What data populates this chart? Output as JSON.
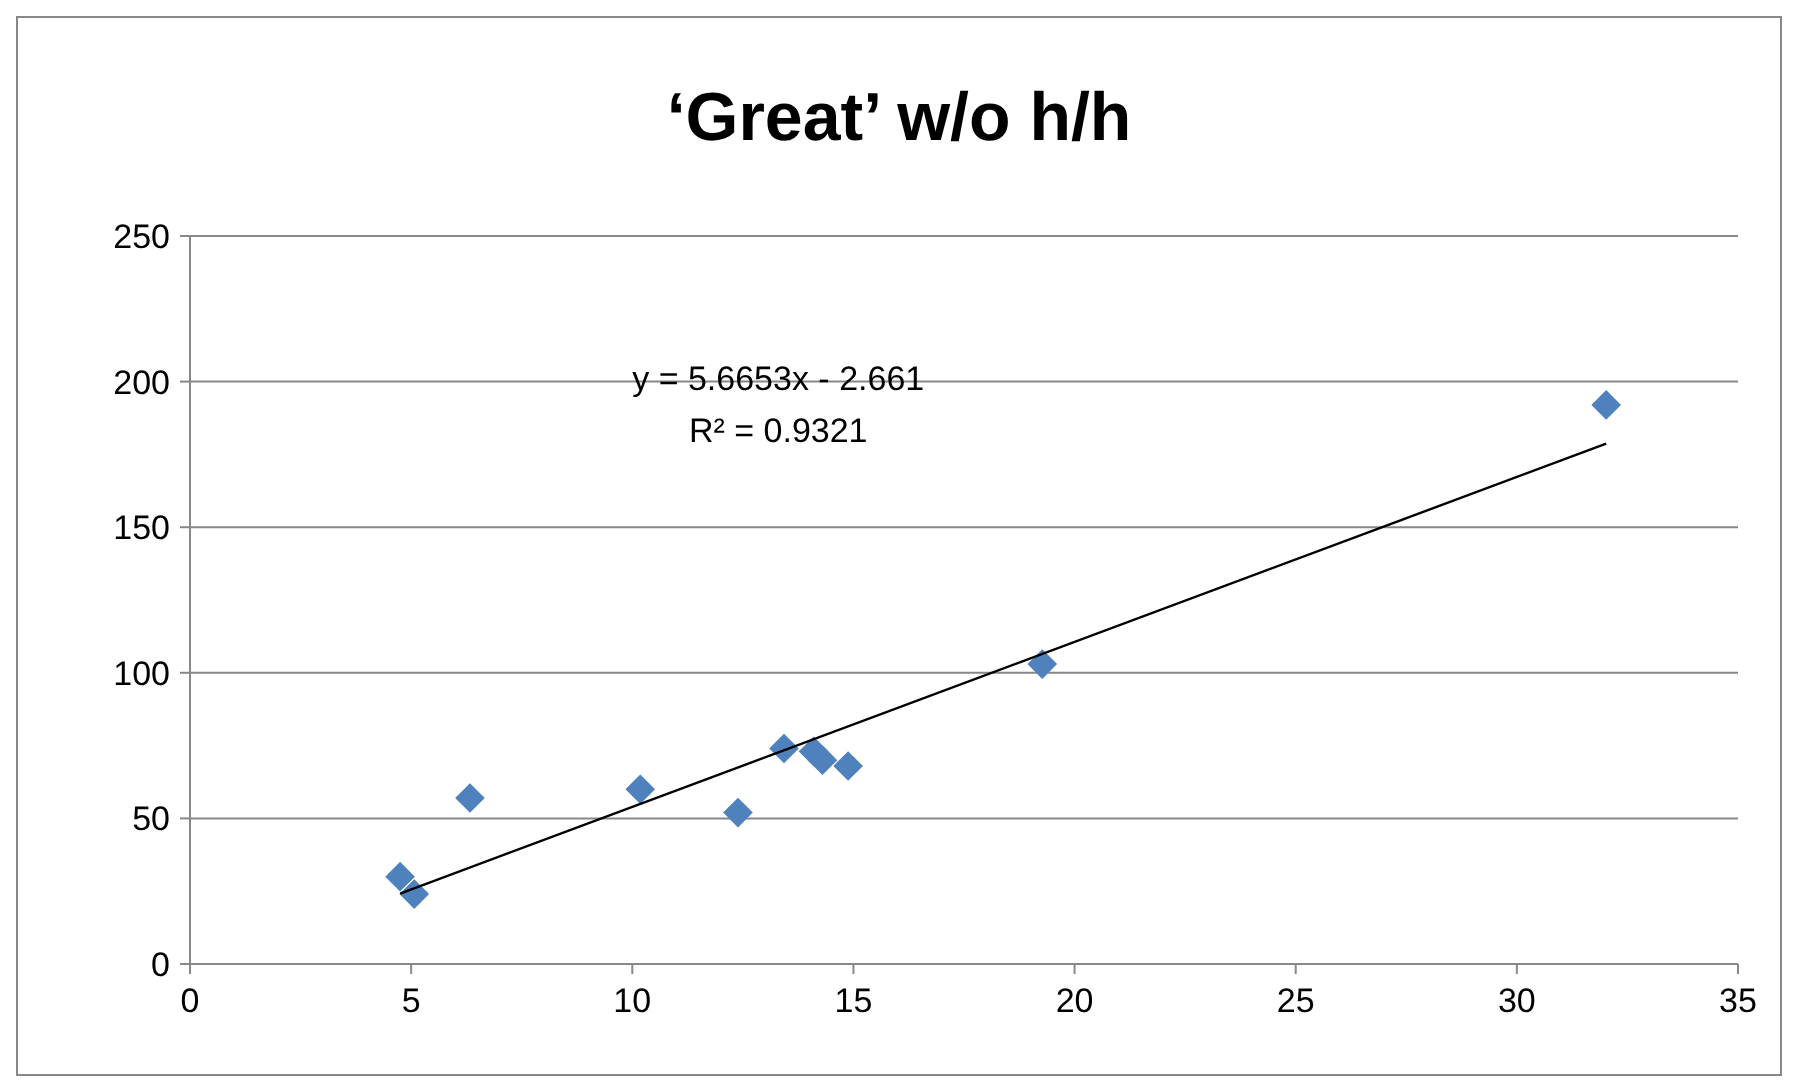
{
  "chart_data": {
    "type": "scatter",
    "title": "‘Great’ w/o h/h",
    "xlim": [
      0,
      35
    ],
    "xticks": [
      0,
      5,
      10,
      15,
      20,
      25,
      30,
      35
    ],
    "ylim": [
      0,
      250
    ],
    "yticks": [
      0,
      50,
      100,
      150,
      200,
      250
    ],
    "grid": "y",
    "marker": "diamond",
    "annotations": [
      "y = 5.6653x - 2.661",
      "R² = 0.9321"
    ],
    "series": [
      {
        "color": "#4f81bd",
        "x": [
          4.75,
          5.07,
          6.33,
          10.18,
          12.39,
          13.43,
          14.1,
          14.3,
          14.88,
          19.27,
          32.02
        ],
        "values": [
          30,
          24,
          57,
          60,
          52,
          74,
          73,
          70,
          68,
          103,
          192
        ]
      },
      {
        "type": "line",
        "color": "#000000",
        "x": [
          4.75,
          32.02
        ],
        "values": [
          24.2,
          178.7
        ],
        "marker": "none",
        "line_style": "solid"
      }
    ]
  }
}
